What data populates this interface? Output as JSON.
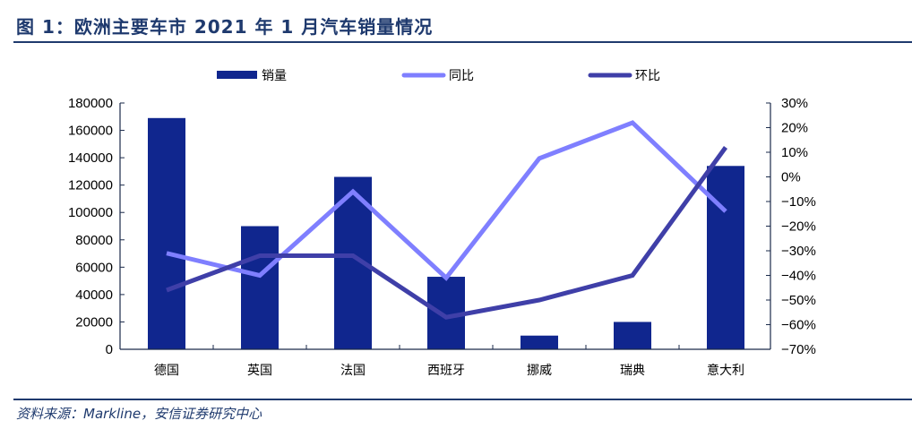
{
  "title": "图 1：欧洲主要车市 2021 年 1 月汽车销量情况",
  "source": "资料来源：Markline，安信证券研究中心",
  "colors": {
    "bar": "#10268e",
    "yoy": "#7f7fff",
    "mom": "#3f3fa8",
    "axis": "#1a2a4a",
    "text_blue": "#1f3a6e"
  },
  "chart_data": {
    "type": "bar",
    "title": "欧洲主要车市 2021 年 1 月汽车销量情况",
    "categories": [
      "德国",
      "英国",
      "法国",
      "西班牙",
      "挪威",
      "瑞典",
      "意大利"
    ],
    "legend_position": "top",
    "series": [
      {
        "name": "销量",
        "type": "bar",
        "axis": "left",
        "values": [
          169000,
          90000,
          126000,
          53000,
          10000,
          20000,
          134000
        ]
      },
      {
        "name": "同比",
        "type": "line",
        "axis": "right",
        "values": [
          -31,
          -40,
          -6,
          -41,
          7.5,
          22,
          -14
        ]
      },
      {
        "name": "环比",
        "type": "line",
        "axis": "right",
        "values": [
          -46,
          -32,
          -32,
          -57,
          -50,
          -40,
          12
        ]
      }
    ],
    "y_left": {
      "min": 0,
      "max": 180000,
      "step": 20000,
      "ticks": [
        "0",
        "20000",
        "40000",
        "60000",
        "80000",
        "100000",
        "120000",
        "140000",
        "160000",
        "180000"
      ]
    },
    "y_right": {
      "min": -70,
      "max": 30,
      "step": 10,
      "ticks": [
        "-70%",
        "-60%",
        "-50%",
        "-40%",
        "-30%",
        "-20%",
        "-10%",
        "0%",
        "10%",
        "20%",
        "30%"
      ]
    },
    "grid": false
  }
}
